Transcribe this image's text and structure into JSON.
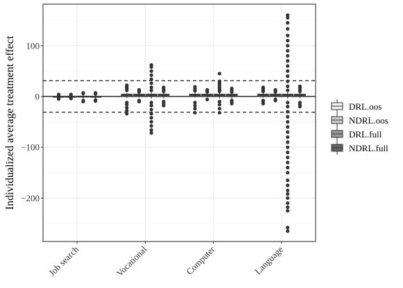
{
  "chart_data": {
    "type": "boxplot",
    "title": "",
    "xlabel": "",
    "ylabel": "Individualized average treatment effect",
    "categories": [
      "Job search",
      "Vocational",
      "Computer",
      "Language"
    ],
    "ylim": [
      -283,
      170
    ],
    "yticks": [
      100,
      0,
      -100,
      -200
    ],
    "grid": true,
    "legend_position": "right",
    "reference_lines": {
      "solid": [
        0
      ],
      "dashed": [
        31,
        -31
      ]
    },
    "series": [
      {
        "name": "DRL.oos",
        "fill": "#f2f2f2",
        "data": [
          {
            "category": "Job search",
            "lower": -3,
            "q1": -1,
            "median": -0.3,
            "q3": 0.5,
            "upper": 2,
            "outliers": [
              -5,
              -4,
              3,
              4
            ]
          },
          {
            "category": "Vocational",
            "lower": -3,
            "q1": 2,
            "median": 3.2,
            "q3": 4.5,
            "upper": 7,
            "outliers": [
              -34,
              -28,
              -22,
              -16,
              -12,
              12,
              16,
              19,
              22
            ]
          },
          {
            "category": "Computer",
            "lower": -2,
            "q1": 2,
            "median": 3.2,
            "q3": 4.5,
            "upper": 7,
            "outliers": [
              -32,
              -24,
              -18,
              -12,
              11,
              15,
              19
            ]
          },
          {
            "category": "Language",
            "lower": -2,
            "q1": 2,
            "median": 3.2,
            "q3": 4.5,
            "upper": 7,
            "outliers": [
              -14,
              -10,
              -8,
              10,
              12,
              15,
              18
            ]
          }
        ]
      },
      {
        "name": "NDRL.oos",
        "fill": "#cccccc",
        "data": [
          {
            "category": "Job search",
            "lower": -2,
            "q1": -0.5,
            "median": 0,
            "q3": 0.5,
            "upper": 2,
            "outliers": [
              -4,
              -3,
              3,
              4
            ]
          },
          {
            "category": "Vocational",
            "lower": -2,
            "q1": 2,
            "median": 3.2,
            "q3": 4.5,
            "upper": 7,
            "outliers": [
              -10,
              -8,
              9,
              11,
              13
            ]
          },
          {
            "category": "Computer",
            "lower": -2,
            "q1": 2,
            "median": 3.2,
            "q3": 4.5,
            "upper": 7,
            "outliers": [
              -6,
              9,
              11,
              13
            ]
          },
          {
            "category": "Language",
            "lower": -2,
            "q1": 2,
            "median": 3.2,
            "q3": 4.5,
            "upper": 7,
            "outliers": [
              -8,
              -6,
              9,
              11,
              13
            ]
          }
        ]
      },
      {
        "name": "DRL.full",
        "fill": "#999999",
        "data": [
          {
            "category": "Job search",
            "lower": -4,
            "q1": -1,
            "median": -0.3,
            "q3": 0.8,
            "upper": 3,
            "outliers": [
              -10,
              -8,
              6,
              7
            ]
          },
          {
            "category": "Vocational",
            "lower": -4,
            "q1": 2,
            "median": 3.2,
            "q3": 4.5,
            "upper": 8,
            "outliers": [
              -72,
              -66,
              -58,
              -50,
              -42,
              -34,
              -26,
              -18,
              -12,
              12,
              18,
              26,
              34,
              42,
              50,
              58,
              62
            ]
          },
          {
            "category": "Computer",
            "lower": -4,
            "q1": 2,
            "median": 3.2,
            "q3": 4.5,
            "upper": 8,
            "outliers": [
              -32,
              -24,
              -16,
              -10,
              10,
              14,
              18,
              22,
              26,
              30,
              45
            ]
          },
          {
            "category": "Language",
            "lower": -4,
            "q1": 2,
            "median": 3.2,
            "q3": 4.5,
            "upper": 8,
            "outliers": [
              -265,
              -258,
              -225,
              -218,
              -210,
              -200,
              -192,
              -185,
              -175,
              -165,
              -150,
              -140,
              -130,
              -120,
              -110,
              -100,
              -90,
              -80,
              -70,
              -60,
              -50,
              -40,
              -30,
              -20,
              -12,
              12,
              20,
              30,
              40,
              50,
              60,
              70,
              80,
              90,
              100,
              110,
              120,
              133,
              145,
              155,
              160
            ]
          }
        ]
      },
      {
        "name": "NDRL.full",
        "fill": "#666666",
        "data": [
          {
            "category": "Job search",
            "lower": -4,
            "q1": -1,
            "median": -0.3,
            "q3": 0.5,
            "upper": 3,
            "outliers": [
              -9,
              -7,
              5,
              7
            ]
          },
          {
            "category": "Vocational",
            "lower": -4,
            "q1": 2,
            "median": 3.2,
            "q3": 4.5,
            "upper": 8,
            "outliers": [
              -18,
              -14,
              -10,
              10,
              14,
              18
            ]
          },
          {
            "category": "Computer",
            "lower": -4,
            "q1": 2,
            "median": 3.2,
            "q3": 4.5,
            "upper": 8,
            "outliers": [
              -14,
              -10,
              -8,
              9,
              12,
              16
            ]
          },
          {
            "category": "Language",
            "lower": -4,
            "q1": 2,
            "median": 3.2,
            "q3": 4.5,
            "upper": 8,
            "outliers": [
              -20,
              -16,
              -12,
              10,
              14,
              18,
              20
            ]
          }
        ]
      }
    ]
  }
}
